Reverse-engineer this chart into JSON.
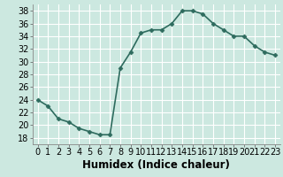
{
  "x": [
    0,
    1,
    2,
    3,
    4,
    5,
    6,
    7,
    8,
    9,
    10,
    11,
    12,
    13,
    14,
    15,
    16,
    17,
    18,
    19,
    20,
    21,
    22,
    23
  ],
  "y": [
    24,
    23,
    21,
    20.5,
    19.5,
    19,
    18.5,
    18.5,
    29,
    31.5,
    34.5,
    35,
    35,
    36,
    38,
    38,
    37.5,
    36,
    35,
    34,
    34,
    32.5,
    31.5,
    31
  ],
  "line_color": "#2e6b5e",
  "marker": "D",
  "marker_size": 2.5,
  "bg_color": "#cce8e0",
  "grid_color": "#ffffff",
  "xlabel": "Humidex (Indice chaleur)",
  "xlim": [
    -0.5,
    23.5
  ],
  "ylim": [
    17,
    39
  ],
  "yticks": [
    18,
    20,
    22,
    24,
    26,
    28,
    30,
    32,
    34,
    36,
    38
  ],
  "xticks": [
    0,
    1,
    2,
    3,
    4,
    5,
    6,
    7,
    8,
    9,
    10,
    11,
    12,
    13,
    14,
    15,
    16,
    17,
    18,
    19,
    20,
    21,
    22,
    23
  ],
  "tick_fontsize": 7,
  "xlabel_fontsize": 8.5,
  "line_width": 1.2
}
